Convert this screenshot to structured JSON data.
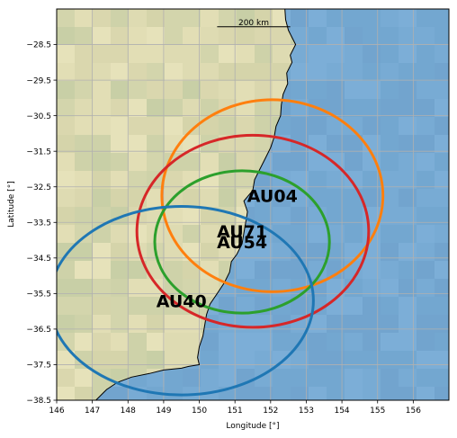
{
  "map": {
    "xlabel": "Longitude [°]",
    "ylabel": "Latitude [°]",
    "xlim": [
      146,
      157
    ],
    "ylim": [
      -38.5,
      -27.5
    ],
    "x_ticks": [
      146,
      147,
      148,
      149,
      150,
      151,
      152,
      153,
      154,
      155,
      156
    ],
    "y_ticks": [
      -28.5,
      -29.5,
      -30.5,
      -31.5,
      -32.5,
      -33.5,
      -34.5,
      -35.5,
      -36.5,
      -37.5,
      -38.5
    ],
    "grid": true,
    "scale_bar": {
      "label": "200 km",
      "lon_start": 150.5,
      "lon_end": 152.55,
      "lat": -28.0
    },
    "land_color": "#dcd9b0",
    "ocean_color": "#76a8d2",
    "coastline_color": "#000000",
    "coastline": [
      [
        152.4,
        -27.5
      ],
      [
        152.42,
        -27.8
      ],
      [
        152.5,
        -28.1
      ],
      [
        152.6,
        -28.3
      ],
      [
        152.7,
        -28.5
      ],
      [
        152.55,
        -28.8
      ],
      [
        152.6,
        -29.0
      ],
      [
        152.45,
        -29.3
      ],
      [
        152.48,
        -29.6
      ],
      [
        152.35,
        -29.9
      ],
      [
        152.3,
        -30.2
      ],
      [
        152.28,
        -30.5
      ],
      [
        152.15,
        -30.8
      ],
      [
        152.1,
        -31.1
      ],
      [
        152.0,
        -31.4
      ],
      [
        151.85,
        -31.7
      ],
      [
        151.7,
        -32.0
      ],
      [
        151.55,
        -32.3
      ],
      [
        151.5,
        -32.6
      ],
      [
        151.25,
        -32.9
      ],
      [
        151.35,
        -33.2
      ],
      [
        151.3,
        -33.5
      ],
      [
        151.25,
        -33.8
      ],
      [
        151.2,
        -34.1
      ],
      [
        151.05,
        -34.4
      ],
      [
        150.9,
        -34.6
      ],
      [
        150.85,
        -34.9
      ],
      [
        150.7,
        -35.2
      ],
      [
        150.5,
        -35.5
      ],
      [
        150.3,
        -35.8
      ],
      [
        150.2,
        -36.1
      ],
      [
        150.15,
        -36.4
      ],
      [
        150.1,
        -36.7
      ],
      [
        150.0,
        -37.0
      ],
      [
        149.95,
        -37.3
      ],
      [
        150.0,
        -37.5
      ],
      [
        149.7,
        -37.55
      ],
      [
        149.5,
        -37.6
      ],
      [
        149.0,
        -37.65
      ],
      [
        148.6,
        -37.75
      ],
      [
        148.1,
        -37.85
      ],
      [
        147.7,
        -38.0
      ],
      [
        147.4,
        -38.2
      ],
      [
        147.1,
        -38.5
      ]
    ]
  },
  "chart_data": {
    "type": "scatter",
    "title": "",
    "xlabel": "Longitude [°]",
    "ylabel": "Latitude [°]",
    "xlim": [
      146,
      157
    ],
    "ylim": [
      -38.5,
      -27.5
    ],
    "series": [
      {
        "name": "AU04",
        "center": [
          152.05,
          -32.75
        ],
        "radius_lon": 3.1,
        "radius_lat": 2.7,
        "color": "#ff7f0e"
      },
      {
        "name": "AU71",
        "center": [
          151.5,
          -33.75
        ],
        "radius_lon": 3.25,
        "radius_lat": 2.7,
        "color": "#d62728"
      },
      {
        "name": "AU54",
        "center": [
          151.2,
          -34.05
        ],
        "radius_lon": 2.45,
        "radius_lat": 2.0,
        "color": "#2ca02c"
      },
      {
        "name": "AU40",
        "center": [
          149.5,
          -35.7
        ],
        "radius_lon": 3.7,
        "radius_lat": 2.65,
        "color": "#1f77b4"
      }
    ],
    "labels": [
      {
        "text": "AU04",
        "lon": 152.05,
        "lat": -32.75
      },
      {
        "text": "AU71",
        "lon": 151.2,
        "lat": -33.75
      },
      {
        "text": "AU54",
        "lon": 151.2,
        "lat": -34.05
      },
      {
        "text": "AU40",
        "lon": 149.5,
        "lat": -35.7
      }
    ]
  }
}
